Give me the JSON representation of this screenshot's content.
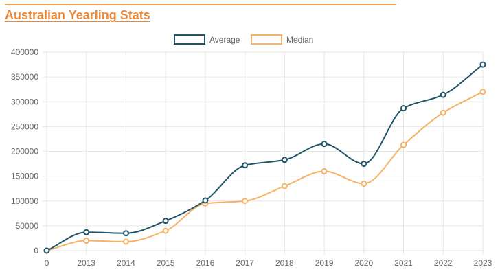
{
  "header": {
    "title": "Australian Yearling Stats"
  },
  "colors": {
    "accent": "#e8893a",
    "average": "#1f5366",
    "median": "#f5b264",
    "grid": "#e6e6e6"
  },
  "chart_data": {
    "type": "line",
    "title": "",
    "xlabel": "",
    "ylabel": "",
    "categories": [
      "0",
      "2013",
      "2014",
      "2015",
      "2016",
      "2017",
      "2018",
      "2019",
      "2020",
      "2021",
      "2022",
      "2023"
    ],
    "y_ticks": [
      "0",
      "50000",
      "100000",
      "150000",
      "200000",
      "250000",
      "300000",
      "350000",
      "400000"
    ],
    "ylim": [
      0,
      400000
    ],
    "grid": true,
    "legend_position": "top",
    "curve": "smooth",
    "series": [
      {
        "name": "Average",
        "color": "#1f5366",
        "values": [
          0,
          37000,
          35000,
          60000,
          101000,
          172000,
          183000,
          215000,
          175000,
          287000,
          314000,
          375000
        ]
      },
      {
        "name": "Median",
        "color": "#f5b264",
        "values": [
          0,
          20000,
          18000,
          40000,
          95000,
          100000,
          130000,
          160000,
          135000,
          213000,
          278000,
          320000
        ]
      }
    ]
  }
}
